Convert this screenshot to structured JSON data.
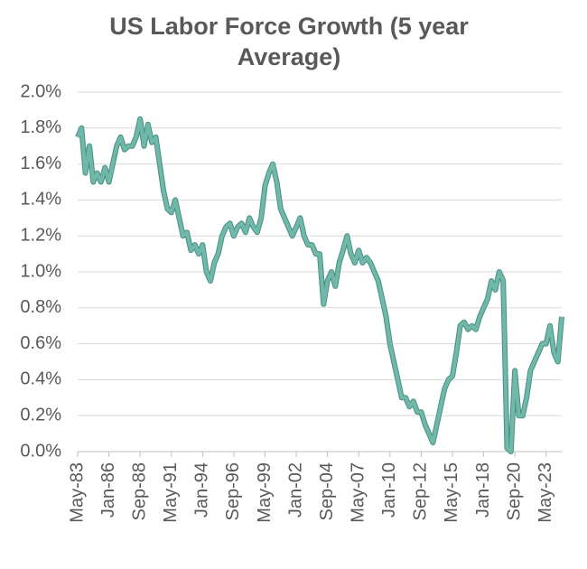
{
  "chart_data": {
    "type": "line",
    "title": "US Labor Force Growth (5 year Average)",
    "x": [
      "1983-05",
      "1983-09",
      "1984-01",
      "1984-05",
      "1984-09",
      "1985-01",
      "1985-05",
      "1985-09",
      "1986-01",
      "1986-05",
      "1986-09",
      "1987-01",
      "1987-05",
      "1987-09",
      "1988-01",
      "1988-05",
      "1988-09",
      "1989-01",
      "1989-05",
      "1989-09",
      "1990-01",
      "1990-05",
      "1990-09",
      "1991-01",
      "1991-05",
      "1991-09",
      "1992-01",
      "1992-05",
      "1992-09",
      "1993-01",
      "1993-05",
      "1993-09",
      "1994-01",
      "1994-05",
      "1994-09",
      "1995-01",
      "1995-05",
      "1995-09",
      "1996-01",
      "1996-05",
      "1996-09",
      "1997-01",
      "1997-05",
      "1997-09",
      "1998-01",
      "1998-05",
      "1998-09",
      "1999-01",
      "1999-05",
      "1999-09",
      "2000-01",
      "2000-05",
      "2000-09",
      "2001-01",
      "2001-05",
      "2001-09",
      "2002-01",
      "2002-05",
      "2002-09",
      "2003-01",
      "2003-05",
      "2003-09",
      "2004-01",
      "2004-05",
      "2004-09",
      "2005-01",
      "2005-05",
      "2005-09",
      "2006-01",
      "2006-05",
      "2006-09",
      "2007-01",
      "2007-05",
      "2007-09",
      "2008-01",
      "2008-05",
      "2008-09",
      "2009-01",
      "2009-05",
      "2009-09",
      "2010-01",
      "2010-05",
      "2010-09",
      "2011-01",
      "2011-05",
      "2011-09",
      "2012-01",
      "2012-05",
      "2012-09",
      "2013-01",
      "2013-05",
      "2013-09",
      "2014-01",
      "2014-05",
      "2014-09",
      "2015-01",
      "2015-05",
      "2015-09",
      "2016-01",
      "2016-05",
      "2016-09",
      "2017-01",
      "2017-05",
      "2017-09",
      "2018-01",
      "2018-05",
      "2018-09",
      "2019-01",
      "2019-05",
      "2019-09",
      "2020-01",
      "2020-05",
      "2020-09",
      "2021-01",
      "2021-05",
      "2021-09",
      "2022-01",
      "2022-05",
      "2022-09",
      "2023-01",
      "2023-05",
      "2023-09",
      "2024-01",
      "2024-05",
      "2024-09"
    ],
    "series": [
      {
        "color": "#6fb8aa",
        "values": [
          1.75,
          1.8,
          1.55,
          1.7,
          1.5,
          1.55,
          1.5,
          1.58,
          1.5,
          1.6,
          1.7,
          1.75,
          1.68,
          1.7,
          1.7,
          1.75,
          1.85,
          1.7,
          1.82,
          1.72,
          1.75,
          1.6,
          1.45,
          1.35,
          1.33,
          1.4,
          1.3,
          1.2,
          1.22,
          1.12,
          1.15,
          1.1,
          1.15,
          1.0,
          0.95,
          1.05,
          1.1,
          1.2,
          1.25,
          1.27,
          1.2,
          1.25,
          1.27,
          1.22,
          1.3,
          1.25,
          1.22,
          1.3,
          1.48,
          1.55,
          1.6,
          1.5,
          1.35,
          1.3,
          1.25,
          1.2,
          1.25,
          1.3,
          1.2,
          1.15,
          1.15,
          1.1,
          1.1,
          0.82,
          0.95,
          1.0,
          0.92,
          1.05,
          1.12,
          1.2,
          1.1,
          1.05,
          1.12,
          1.05,
          1.08,
          1.05,
          1.0,
          0.95,
          0.85,
          0.75,
          0.6,
          0.5,
          0.4,
          0.3,
          0.3,
          0.25,
          0.28,
          0.22,
          0.22,
          0.15,
          0.1,
          0.05,
          0.15,
          0.25,
          0.35,
          0.4,
          0.42,
          0.55,
          0.7,
          0.72,
          0.68,
          0.7,
          0.68,
          0.75,
          0.8,
          0.85,
          0.95,
          0.9,
          1.0,
          0.95,
          0.02,
          0.0,
          0.45,
          0.2,
          0.2,
          0.3,
          0.45,
          0.5,
          0.55,
          0.6,
          0.6,
          0.7,
          0.55,
          0.5,
          0.75
        ]
      }
    ],
    "ylim": [
      0,
      2.0
    ],
    "yticks": [
      {
        "value": 0,
        "label": "0.0%"
      },
      {
        "value": 0.2,
        "label": "0.2%"
      },
      {
        "value": 0.4,
        "label": "0.4%"
      },
      {
        "value": 0.6,
        "label": "0.6%"
      },
      {
        "value": 0.8,
        "label": "0.8%"
      },
      {
        "value": 1.0,
        "label": "1.0%"
      },
      {
        "value": 1.2,
        "label": "1.2%"
      },
      {
        "value": 1.4,
        "label": "1.4%"
      },
      {
        "value": 1.6,
        "label": "1.6%"
      },
      {
        "value": 1.8,
        "label": "1.8%"
      },
      {
        "value": 2.0,
        "label": "2.0%"
      }
    ],
    "xlim": [
      "1983-05",
      "2024-09"
    ],
    "xticks": [
      {
        "value": "1983-05",
        "label": "May-83"
      },
      {
        "value": "1986-01",
        "label": "Jan-86"
      },
      {
        "value": "1988-09",
        "label": "Sep-88"
      },
      {
        "value": "1991-05",
        "label": "May-91"
      },
      {
        "value": "1994-01",
        "label": "Jan-94"
      },
      {
        "value": "1996-09",
        "label": "Sep-96"
      },
      {
        "value": "1999-05",
        "label": "May-99"
      },
      {
        "value": "2002-01",
        "label": "Jan-02"
      },
      {
        "value": "2004-09",
        "label": "Sep-04"
      },
      {
        "value": "2007-05",
        "label": "May-07"
      },
      {
        "value": "2010-01",
        "label": "Jan-10"
      },
      {
        "value": "2012-09",
        "label": "Sep-12"
      },
      {
        "value": "2015-05",
        "label": "May-15"
      },
      {
        "value": "2018-01",
        "label": "Jan-18"
      },
      {
        "value": "2020-09",
        "label": "Sep-20"
      },
      {
        "value": "2023-05",
        "label": "May-23"
      }
    ],
    "grid": true
  }
}
